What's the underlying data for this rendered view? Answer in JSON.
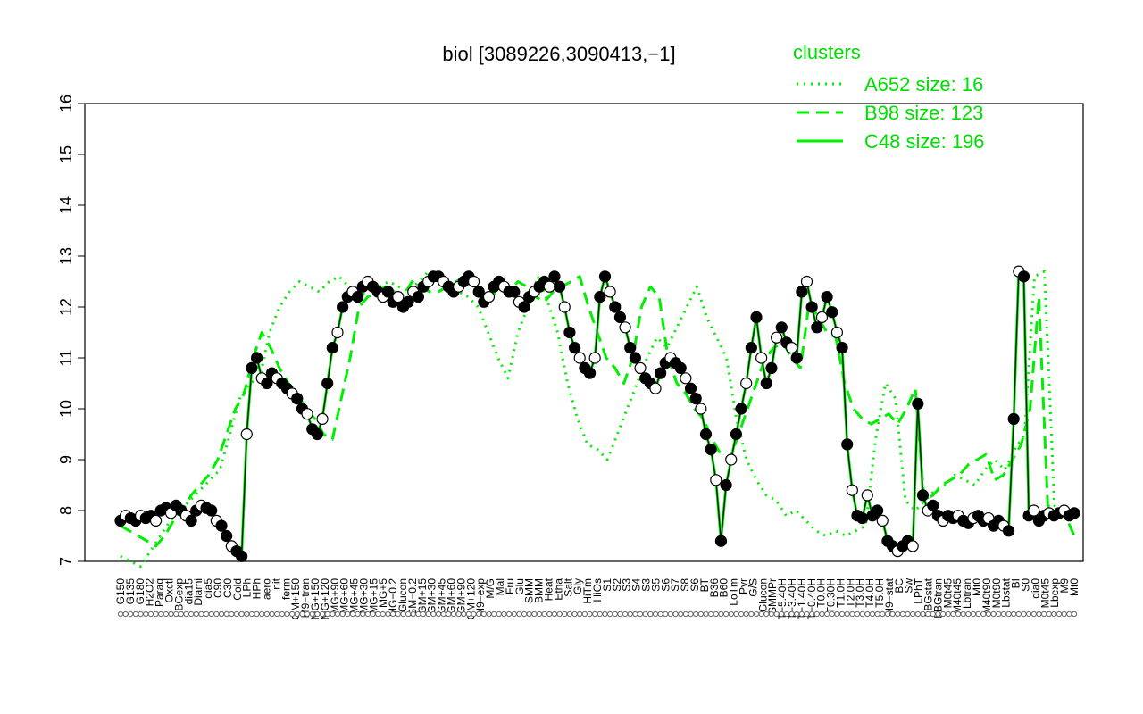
{
  "chart_data": {
    "type": "line",
    "title": "biol [3089226,3090413,−1]",
    "xlabel": "",
    "ylabel": "",
    "ylim": [
      7,
      16
    ],
    "yticks": [
      7,
      8,
      9,
      10,
      11,
      12,
      13,
      14,
      15,
      16
    ],
    "grid": false,
    "legend": {
      "title": "clusters",
      "position": "top-right",
      "entries": [
        {
          "label": "A652 size: 16",
          "style": "dotted"
        },
        {
          "label": "B98 size: 123",
          "style": "dashed"
        },
        {
          "label": "C48 size: 196",
          "style": "solid"
        }
      ]
    },
    "x_labels": [
      "G150",
      "G135",
      "G180",
      "H2O2",
      "Paraq",
      "Oxctl",
      "LBGexp",
      "dia15",
      "Diami",
      "dia5",
      "C90",
      "C30",
      "Cold",
      "LPh",
      "HPh",
      "aero",
      "nit",
      "ferm",
      "GM+150",
      "M9−tran",
      "MG+150",
      "MG+120",
      "MG+90",
      "MG+60",
      "MG+45",
      "MG+30",
      "MG+15",
      "MG+5",
      "MG−0.2",
      "Glucon",
      "GM−0.2",
      "GM+15",
      "GM+30",
      "GM+45",
      "GM+60",
      "GM+90",
      "GM+120",
      "M9−exp",
      "M/G",
      "Mal",
      "Fru",
      "Glu",
      "SMM",
      "BMM",
      "Heat",
      "Etha",
      "Salt",
      "Gly",
      "HiTm",
      "HiOs",
      "S1",
      "S2",
      "S3",
      "S4",
      "S3",
      "S5",
      "S6",
      "S7",
      "S8",
      "S6",
      "BT",
      "B36",
      "B60",
      "LoTm",
      "Pyr",
      "G/S",
      "Glucon",
      "SMMPr",
      "T−5.40H",
      "T−3.40H",
      "T−1.40H",
      "T−0.40H",
      "T0.0H",
      "T0.30H",
      "T1.0H",
      "T2.0H",
      "T3.0H",
      "T4.0H",
      "T5.0H",
      "M9−stat",
      "BC",
      "Sw",
      "LPhT",
      "LBGstat",
      "LBGtran",
      "M0t45",
      "M40t45",
      "Lbtran",
      "Mt0",
      "M40t90",
      "M0t90",
      "Lbstat",
      "BI",
      "S0",
      "dia0",
      "M0t45",
      "Lbexp",
      "M9",
      "Mt0"
    ],
    "series": [
      {
        "name": "C48 size: 196",
        "style": "solid",
        "x": [
          1,
          2,
          3,
          4,
          5,
          6,
          7,
          8,
          9,
          10,
          11,
          12,
          13,
          14,
          15,
          16,
          17,
          18,
          19,
          20,
          21,
          22,
          23,
          24,
          25,
          26,
          27,
          28,
          29,
          30,
          31,
          32,
          33,
          34,
          35,
          36,
          37,
          38,
          39,
          40,
          41,
          42,
          43,
          44,
          45,
          46,
          47,
          48,
          49,
          50,
          51,
          52,
          53,
          54,
          55,
          56,
          57,
          58,
          59,
          60,
          61,
          62,
          63,
          64,
          65,
          66,
          67,
          68,
          69,
          70,
          71,
          72,
          73,
          74,
          75,
          76,
          77,
          78,
          79,
          80,
          81,
          82,
          83,
          84,
          85,
          86,
          87,
          88,
          89,
          90,
          91,
          92,
          93,
          94,
          95,
          96,
          97,
          98,
          99,
          100,
          101,
          102,
          103,
          104,
          105,
          106,
          107,
          108,
          109,
          110,
          111,
          112,
          113,
          114,
          115,
          116,
          117,
          118,
          119,
          120,
          121,
          122,
          123,
          124,
          125,
          126,
          127,
          128,
          129,
          130,
          131,
          132,
          133,
          134,
          135,
          136,
          137,
          138,
          139,
          140,
          141,
          142,
          143,
          144,
          145,
          146,
          147,
          148,
          149,
          150,
          151,
          152,
          153,
          154,
          155,
          156,
          157,
          158,
          159,
          160,
          161,
          162,
          163,
          164,
          165,
          166,
          167,
          168,
          169,
          170,
          171,
          172,
          173,
          174,
          175,
          176,
          177,
          178,
          179,
          180,
          181,
          182,
          183,
          184,
          185,
          186,
          187,
          188,
          189,
          190
        ],
        "values": [
          7.8,
          7.9,
          7.85,
          7.8,
          7.9,
          7.85,
          7.9,
          7.8,
          8.0,
          8.05,
          7.95,
          8.1,
          8.0,
          7.9,
          7.8,
          8.0,
          8.1,
          8.05,
          8.0,
          7.8,
          7.7,
          7.5,
          7.3,
          7.2,
          7.1,
          9.5,
          10.8,
          11.0,
          10.6,
          10.5,
          10.7,
          10.6,
          10.5,
          10.4,
          10.3,
          10.2,
          10.0,
          9.9,
          9.6,
          9.5,
          9.8,
          10.5,
          11.2,
          11.5,
          12.0,
          12.2,
          12.3,
          12.2,
          12.4,
          12.5,
          12.4,
          12.3,
          12.2,
          12.3,
          12.1,
          12.2,
          12.0,
          12.1,
          12.3,
          12.2,
          12.4,
          12.5,
          12.6,
          12.6,
          12.5,
          12.4,
          12.3,
          12.4,
          12.5,
          12.6,
          12.5,
          12.3,
          12.1,
          12.2,
          12.4,
          12.5,
          12.4,
          12.3,
          12.3,
          12.1,
          12.0,
          12.2,
          12.3,
          12.4,
          12.5,
          12.4,
          12.6,
          12.4,
          12.0,
          11.5,
          11.2,
          11.0,
          10.8,
          10.7,
          11.0,
          12.2,
          12.6,
          12.3,
          12.0,
          11.8,
          11.6,
          11.2,
          11.0,
          10.8,
          10.6,
          10.5,
          10.4,
          10.7,
          10.9,
          11.0,
          10.9,
          10.8,
          10.6,
          10.4,
          10.2,
          10.0,
          9.5,
          9.2,
          8.6,
          7.4,
          8.5,
          9.0,
          9.5,
          10.0,
          10.5,
          11.2,
          11.8,
          11.0,
          10.5,
          10.8,
          11.4,
          11.6,
          11.3,
          11.2,
          11.0,
          12.3,
          12.5,
          12.0,
          11.6,
          11.8,
          12.2,
          11.9,
          11.5,
          11.2,
          9.3,
          8.4,
          7.9,
          7.85,
          8.3,
          7.9,
          8.0,
          7.8,
          7.4,
          7.3,
          7.2,
          7.3,
          7.4,
          7.3,
          10.1,
          8.3,
          8.0,
          8.1,
          7.9,
          7.8,
          7.9,
          7.85,
          7.9,
          7.8,
          7.75,
          7.85,
          7.9,
          7.8,
          7.85,
          7.7,
          7.8,
          7.7,
          7.6,
          9.8,
          12.7,
          12.6,
          7.9,
          8.0,
          7.8,
          7.9,
          7.95,
          7.9,
          7.95,
          8.0,
          7.9,
          7.95
        ],
        "markers_at": "each_condition"
      },
      {
        "name": "B98 size: 123",
        "style": "dashed",
        "x_ref": "C48 size: 196",
        "values_desc": "broadly follows C48, higher in C90-ferm and T0.30H-Mt0 ranges",
        "values": [
          7.7,
          7.6,
          7.5,
          7.4,
          7.3,
          7.5,
          7.8,
          8.0,
          8.3,
          8.5,
          8.7,
          9.0,
          9.5,
          10.0,
          10.3,
          11.0,
          11.5,
          11.2,
          10.8,
          10.5,
          10.3,
          10.0,
          9.8,
          9.5,
          9.4,
          10.2,
          11.0,
          12.0,
          12.2,
          12.3,
          12.4,
          12.3,
          12.2,
          12.5,
          12.4,
          12.3,
          12.3,
          12.4,
          12.5,
          12.6,
          12.5,
          12.3,
          12.2,
          12.4,
          12.3,
          12.5,
          12.4,
          12.2,
          12.1,
          12.3,
          12.4,
          12.5,
          12.6,
          12.0,
          11.5,
          11.0,
          10.8,
          10.5,
          11.0,
          12.0,
          12.4,
          12.2,
          11.0,
          10.5,
          10.3,
          10.0,
          9.8,
          9.4,
          9.1,
          9.0,
          9.5,
          10.0,
          10.5,
          11.0,
          11.2,
          11.3,
          11.0,
          10.8,
          12.1,
          11.8,
          11.5,
          11.4,
          10.5,
          10.0,
          9.8,
          9.7,
          9.8,
          9.9,
          9.7,
          10.0,
          10.4,
          8.2,
          8.3,
          8.5,
          8.6,
          8.7,
          8.9,
          9.0,
          9.1,
          8.6,
          8.7,
          9.0,
          9.3,
          10.0,
          12.2,
          8.1,
          8.0,
          7.9,
          7.5
        ]
      },
      {
        "name": "A652 size: 16",
        "style": "dotted",
        "x_ref": "C48 size: 196",
        "values": [
          7.1,
          7.0,
          6.9,
          7.2,
          7.5,
          7.8,
          8.0,
          8.2,
          8.4,
          8.6,
          8.8,
          9.5,
          10.2,
          10.5,
          10.6,
          11.5,
          12.0,
          12.3,
          12.5,
          12.4,
          12.3,
          12.5,
          12.6,
          12.4,
          12.3,
          12.2,
          12.4,
          12.5,
          12.4,
          12.3,
          12.5,
          12.7,
          12.6,
          12.4,
          12.3,
          12.2,
          12.0,
          11.5,
          11.0,
          10.6,
          11.5,
          12.0,
          12.6,
          12.1,
          11.5,
          10.5,
          9.8,
          9.3,
          9.2,
          9.0,
          9.5,
          10.0,
          10.5,
          11.0,
          11.4,
          11.2,
          11.6,
          12.0,
          12.4,
          11.8,
          11.4,
          11.0,
          9.8,
          9.0,
          8.6,
          8.3,
          8.2,
          7.9,
          8.0,
          7.8,
          7.6,
          7.5,
          7.6,
          7.5,
          7.6,
          7.7,
          9.4,
          10.5,
          10.2,
          8.2,
          8.0,
          8.2,
          8.4,
          8.5,
          8.7,
          8.6,
          8.5,
          8.8,
          9.0,
          8.8,
          9.2,
          9.5,
          12.6,
          12.7,
          8.1,
          7.9,
          7.8
        ]
      }
    ]
  }
}
